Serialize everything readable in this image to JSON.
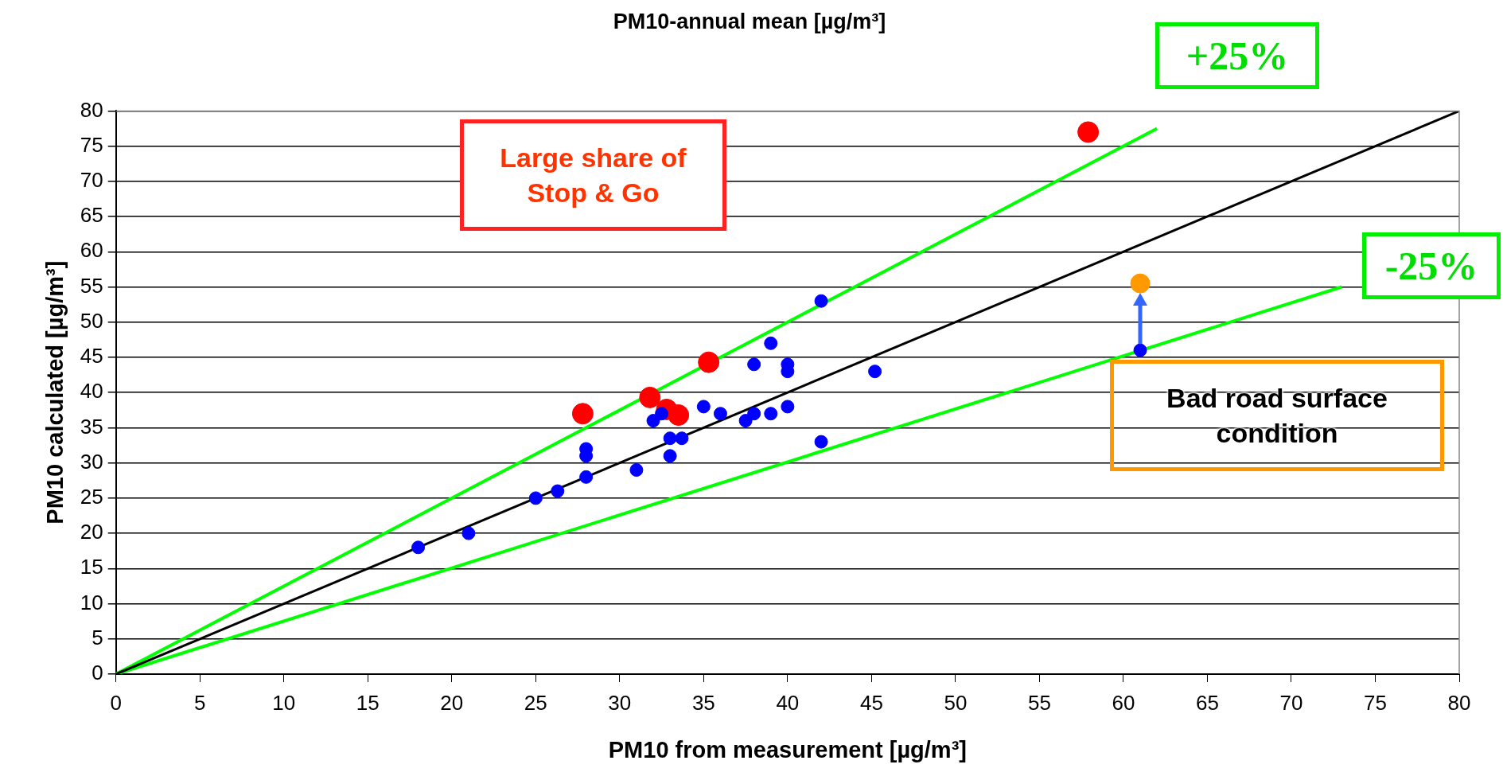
{
  "chart_data": {
    "type": "scatter",
    "title": "PM10-annual mean [µg/m³]",
    "xlabel": "PM10 from measurement [µg/m³]",
    "ylabel": "PM10 calculated [µg/m³]",
    "xlim": [
      0,
      80
    ],
    "ylim": [
      0,
      80
    ],
    "xticks": [
      0,
      5,
      10,
      15,
      20,
      25,
      30,
      35,
      40,
      45,
      50,
      55,
      60,
      65,
      70,
      75,
      80
    ],
    "yticks": [
      0,
      5,
      10,
      15,
      20,
      25,
      30,
      35,
      40,
      45,
      50,
      55,
      60,
      65,
      70,
      75,
      80
    ],
    "grid": "y",
    "legend": false,
    "series": [
      {
        "marker": "circle",
        "color": "#0000ff",
        "x": [
          18,
          21,
          25,
          26.3,
          28,
          28,
          28,
          31,
          32,
          32.5,
          33,
          33,
          33.7,
          35,
          36,
          37.5,
          38,
          38,
          39,
          39,
          40,
          40,
          40,
          42,
          42,
          45.2,
          61
        ],
        "values": [
          18,
          20,
          25,
          26,
          28,
          31,
          32,
          29,
          36,
          37,
          31,
          33.5,
          33.5,
          38,
          37,
          36,
          37,
          44,
          47,
          37,
          44,
          43,
          38,
          53,
          33,
          43,
          46
        ]
      },
      {
        "marker": "circle",
        "color": "#ff0000",
        "x": [
          27.8,
          31.8,
          32.8,
          33.5,
          35.3,
          57.9
        ],
        "values": [
          37,
          39.3,
          37.6,
          36.8,
          44.3,
          77
        ]
      },
      {
        "marker": "circle",
        "color": "#ff9900",
        "x": [
          61
        ],
        "values": [
          55.5
        ]
      },
      {
        "type": "line",
        "marker": "none",
        "color": "#000000",
        "x": [
          0,
          80
        ],
        "values": [
          0,
          80
        ]
      },
      {
        "type": "line",
        "marker": "none",
        "color": "#00ff00",
        "x": [
          0,
          62
        ],
        "values": [
          0,
          77.5
        ]
      },
      {
        "type": "line",
        "marker": "none",
        "color": "#00ff00",
        "x": [
          0,
          73
        ],
        "values": [
          0,
          55
        ]
      }
    ],
    "annotations": [
      "+25%",
      "-25%",
      "Large share of Stop & Go",
      "Bad road surface condition"
    ]
  }
}
